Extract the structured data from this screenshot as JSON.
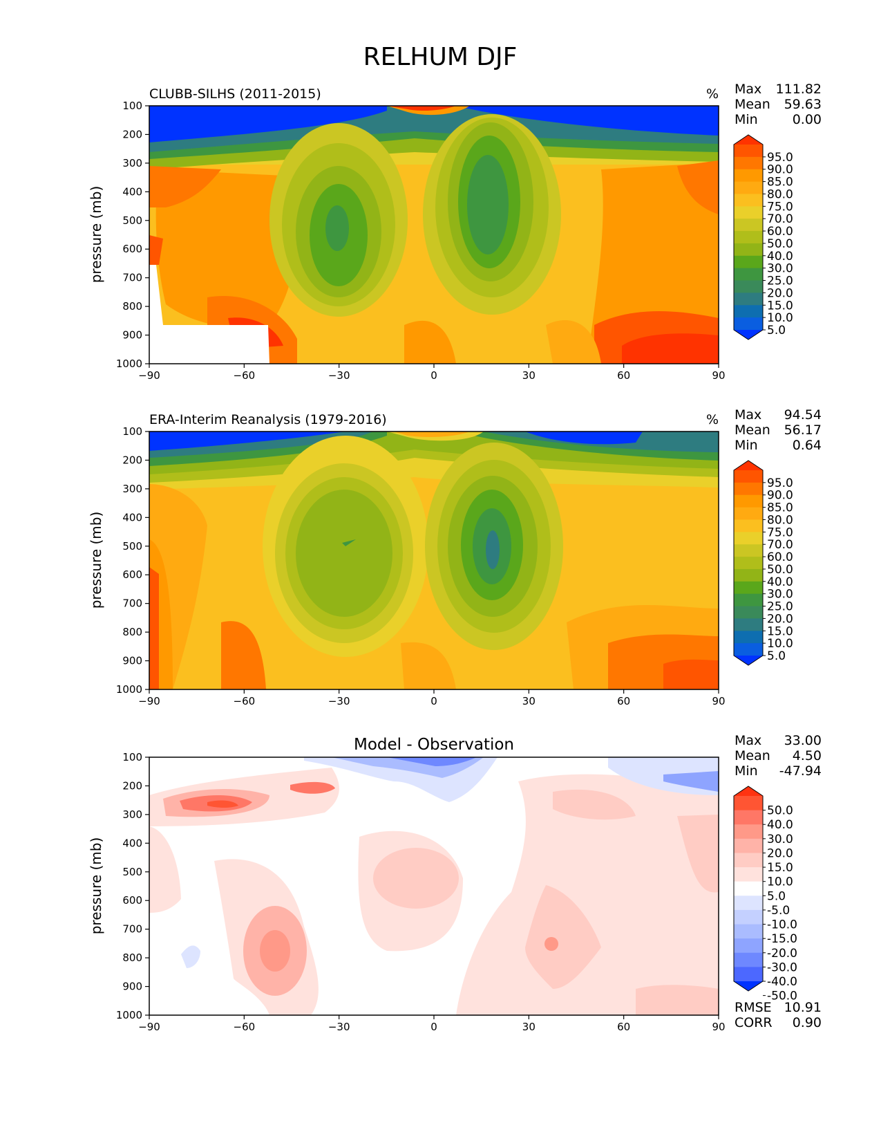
{
  "figure_title": "RELHUM DJF",
  "chart_data": [
    {
      "type": "heatmap",
      "title": "CLUBB-SILHS (2011-2015)",
      "units": "%",
      "ylabel": "pressure (mb)",
      "xlim": [
        -90,
        90
      ],
      "ylim": [
        1000,
        100
      ],
      "xticks": [
        "−90",
        "−60",
        "−30",
        "0",
        "30",
        "60",
        "90"
      ],
      "yticks": [
        "100",
        "200",
        "300",
        "400",
        "500",
        "600",
        "700",
        "800",
        "900",
        "1000"
      ],
      "stats": [
        {
          "label": "Max",
          "value": "111.82"
        },
        {
          "label": "Mean",
          "value": "59.63"
        },
        {
          "label": "Min",
          "value": "0.00"
        }
      ],
      "colorbar": {
        "labels": [
          "95.0",
          "90.0",
          "85.0",
          "80.0",
          "75.0",
          "70.0",
          "60.0",
          "50.0",
          "40.0",
          "30.0",
          "25.0",
          "20.0",
          "15.0",
          "10.0",
          "5.0"
        ],
        "colors": [
          "#ff3300",
          "#ff5500",
          "#ff7700",
          "#ff9900",
          "#ffaa11",
          "#fbbf1f",
          "#ead02a",
          "#cbc623",
          "#b0be1a",
          "#92b417",
          "#5aa71b",
          "#3e9640",
          "#3a8a5a",
          "#2e7c80",
          "#0e6eb0",
          "#0a5ee0",
          "#0033ff"
        ]
      },
      "grid": false
    },
    {
      "type": "heatmap",
      "title": "ERA-Interim Reanalysis (1979-2016)",
      "units": "%",
      "ylabel": "pressure (mb)",
      "xlim": [
        -90,
        90
      ],
      "ylim": [
        1000,
        100
      ],
      "xticks": [
        "−90",
        "−60",
        "−30",
        "0",
        "30",
        "60",
        "90"
      ],
      "yticks": [
        "100",
        "200",
        "300",
        "400",
        "500",
        "600",
        "700",
        "800",
        "900",
        "1000"
      ],
      "stats": [
        {
          "label": "Max",
          "value": "94.54"
        },
        {
          "label": "Mean",
          "value": "56.17"
        },
        {
          "label": "Min",
          "value": "0.64"
        }
      ],
      "colorbar": {
        "labels": [
          "95.0",
          "90.0",
          "85.0",
          "80.0",
          "75.0",
          "70.0",
          "60.0",
          "50.0",
          "40.0",
          "30.0",
          "25.0",
          "20.0",
          "15.0",
          "10.0",
          "5.0"
        ],
        "colors": [
          "#ff3300",
          "#ff5500",
          "#ff7700",
          "#ff9900",
          "#ffaa11",
          "#fbbf1f",
          "#ead02a",
          "#cbc623",
          "#b0be1a",
          "#92b417",
          "#5aa71b",
          "#3e9640",
          "#3a8a5a",
          "#2e7c80",
          "#0e6eb0",
          "#0a5ee0",
          "#0033ff"
        ]
      },
      "grid": false
    },
    {
      "type": "heatmap",
      "title": "Model - Observation",
      "ylabel": "pressure (mb)",
      "xlim": [
        -90,
        90
      ],
      "ylim": [
        1000,
        100
      ],
      "xticks": [
        "−90",
        "−60",
        "−30",
        "0",
        "30",
        "60",
        "90"
      ],
      "yticks": [
        "100",
        "200",
        "300",
        "400",
        "500",
        "600",
        "700",
        "800",
        "900",
        "1000"
      ],
      "stats": [
        {
          "label": "Max",
          "value": "33.00"
        },
        {
          "label": "Mean",
          "value": "4.50"
        },
        {
          "label": "Min",
          "value": "-47.94"
        }
      ],
      "metrics": [
        {
          "label": "RMSE",
          "value": "10.91"
        },
        {
          "label": "CORR",
          "value": "0.90"
        }
      ],
      "colorbar": {
        "labels": [
          "50.0",
          "40.0",
          "30.0",
          "20.0",
          "15.0",
          "10.0",
          "5.0",
          "-5.0",
          "-10.0",
          "-15.0",
          "-20.0",
          "-30.0",
          "-40.0",
          "-50.0"
        ],
        "colors": [
          "#ff3311",
          "#ff5533",
          "#ff7766",
          "#ff9988",
          "#ffb3a8",
          "#ffccc4",
          "#ffe2dd",
          "#ffffff",
          "#dde4ff",
          "#c4d0ff",
          "#aabcff",
          "#8ea4ff",
          "#6e88ff",
          "#4c68ff",
          "#0033ff"
        ]
      },
      "grid": false
    }
  ]
}
